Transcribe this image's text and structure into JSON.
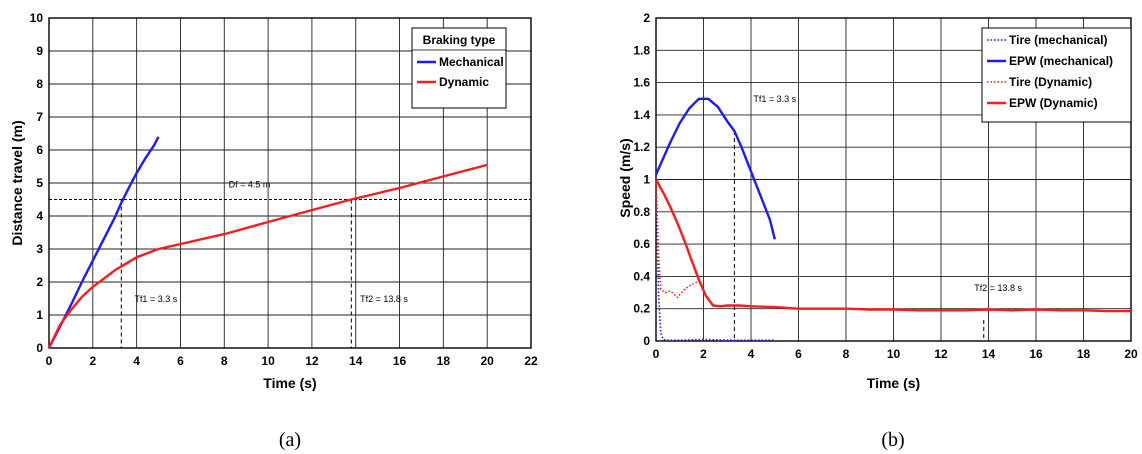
{
  "chart_data": [
    {
      "type": "line",
      "panel_label": "(a)",
      "xlabel": "Time (s)",
      "ylabel": "Distance travel  (m)",
      "xlim": [
        0,
        22
      ],
      "ylim": [
        0,
        10
      ],
      "xticks": [
        0,
        2,
        4,
        6,
        8,
        10,
        12,
        14,
        16,
        18,
        20,
        22
      ],
      "yticks": [
        0,
        1,
        2,
        3,
        4,
        5,
        6,
        7,
        8,
        9,
        10
      ],
      "grid": true,
      "legend": {
        "title": "Braking type",
        "placement": "top-right"
      },
      "series": [
        {
          "name": "Mechanical",
          "color": "#1a1aff",
          "x": [
            0,
            0.5,
            1,
            1.5,
            2,
            2.5,
            3,
            3.3,
            3.6,
            4,
            4.4,
            4.8,
            5
          ],
          "y": [
            0,
            0.65,
            1.3,
            2.0,
            2.65,
            3.3,
            3.95,
            4.4,
            4.8,
            5.3,
            5.75,
            6.15,
            6.4
          ]
        },
        {
          "name": "Dynamic",
          "color": "#ff1a1a",
          "x": [
            0,
            0.5,
            1,
            1.5,
            2,
            3,
            4,
            5,
            8,
            11,
            13.8,
            16,
            18,
            20
          ],
          "y": [
            0,
            0.7,
            1.15,
            1.55,
            1.85,
            2.35,
            2.75,
            3.0,
            3.45,
            4.0,
            4.5,
            4.85,
            5.2,
            5.55
          ]
        }
      ],
      "annotations": {
        "df_label": "Df = 4.5 m",
        "df_value": 4.5,
        "df_x": 8.2,
        "tf1_label": "Tf1 = 3.3 s",
        "tf1_value": 3.3,
        "tf1_text_x": 3.9,
        "tf1_text_y": 1.4,
        "tf2_label": "Tf2 = 13.8 s",
        "tf2_value": 13.8,
        "tf2_text_x": 14.2,
        "tf2_text_y": 1.4
      }
    },
    {
      "type": "line",
      "panel_label": "(b)",
      "xlabel": "Time (s)",
      "ylabel": "Speed (m/s)",
      "xlim": [
        0,
        20
      ],
      "ylim": [
        0,
        2
      ],
      "xticks": [
        0,
        2,
        4,
        6,
        8,
        10,
        12,
        14,
        16,
        18,
        20
      ],
      "yticks": [
        0,
        0.2,
        0.4,
        0.6,
        0.8,
        1,
        1.2,
        1.4,
        1.6,
        1.8,
        2
      ],
      "grid": true,
      "legend": {
        "placement": "top-right"
      },
      "series": [
        {
          "name": "Tire  (mechanical)",
          "color": "#1a1aff",
          "style": "dotted",
          "x": [
            0,
            0.05,
            0.1,
            0.2,
            0.3,
            0.5,
            1,
            2,
            3,
            4,
            5
          ],
          "y": [
            1.0,
            0.7,
            0.3,
            0.05,
            0.01,
            0.005,
            0.005,
            0.01,
            0.005,
            0.005,
            0.005
          ]
        },
        {
          "name": "EPW (mechanical)",
          "color": "#1a1aff",
          "style": "solid",
          "x": [
            0,
            0.3,
            0.6,
            1,
            1.4,
            1.8,
            2.2,
            2.6,
            3,
            3.3,
            3.6,
            4,
            4.4,
            4.8,
            5
          ],
          "y": [
            1.03,
            1.13,
            1.23,
            1.35,
            1.44,
            1.5,
            1.5,
            1.45,
            1.36,
            1.3,
            1.2,
            1.05,
            0.9,
            0.75,
            0.63
          ]
        },
        {
          "name": "Tire  (Dynamic)",
          "color": "#ff1a1a",
          "style": "dotted",
          "x": [
            0,
            0.05,
            0.1,
            0.2,
            0.4,
            0.6,
            0.9,
            1.2,
            1.5,
            1.8
          ],
          "y": [
            1.0,
            0.8,
            0.55,
            0.32,
            0.3,
            0.31,
            0.27,
            0.32,
            0.35,
            0.37
          ]
        },
        {
          "name": "EPW (Dynamic)",
          "color": "#ff1a1a",
          "style": "solid",
          "x": [
            0,
            0.3,
            0.6,
            0.9,
            1.2,
            1.5,
            1.8,
            2.1,
            2.4,
            2.7,
            3,
            3.5,
            4,
            5,
            6,
            7,
            8,
            9,
            10,
            11,
            12,
            13,
            14,
            15,
            16,
            17,
            18,
            19,
            20
          ],
          "y": [
            1.0,
            0.92,
            0.83,
            0.73,
            0.62,
            0.5,
            0.38,
            0.28,
            0.22,
            0.215,
            0.22,
            0.22,
            0.215,
            0.21,
            0.2,
            0.2,
            0.2,
            0.195,
            0.195,
            0.19,
            0.19,
            0.19,
            0.195,
            0.19,
            0.195,
            0.19,
            0.19,
            0.185,
            0.185
          ]
        }
      ],
      "annotations": {
        "tf1_label": "Tf1 = 3.3 s",
        "tf1_value": 3.3,
        "tf1_text_x": 4.1,
        "tf1_text_y": 1.48,
        "tf2_label": "Tf2 = 13.8 s",
        "tf2_value": 13.8,
        "tf2_text_x": 13.4,
        "tf2_text_y": 0.31
      }
    }
  ]
}
